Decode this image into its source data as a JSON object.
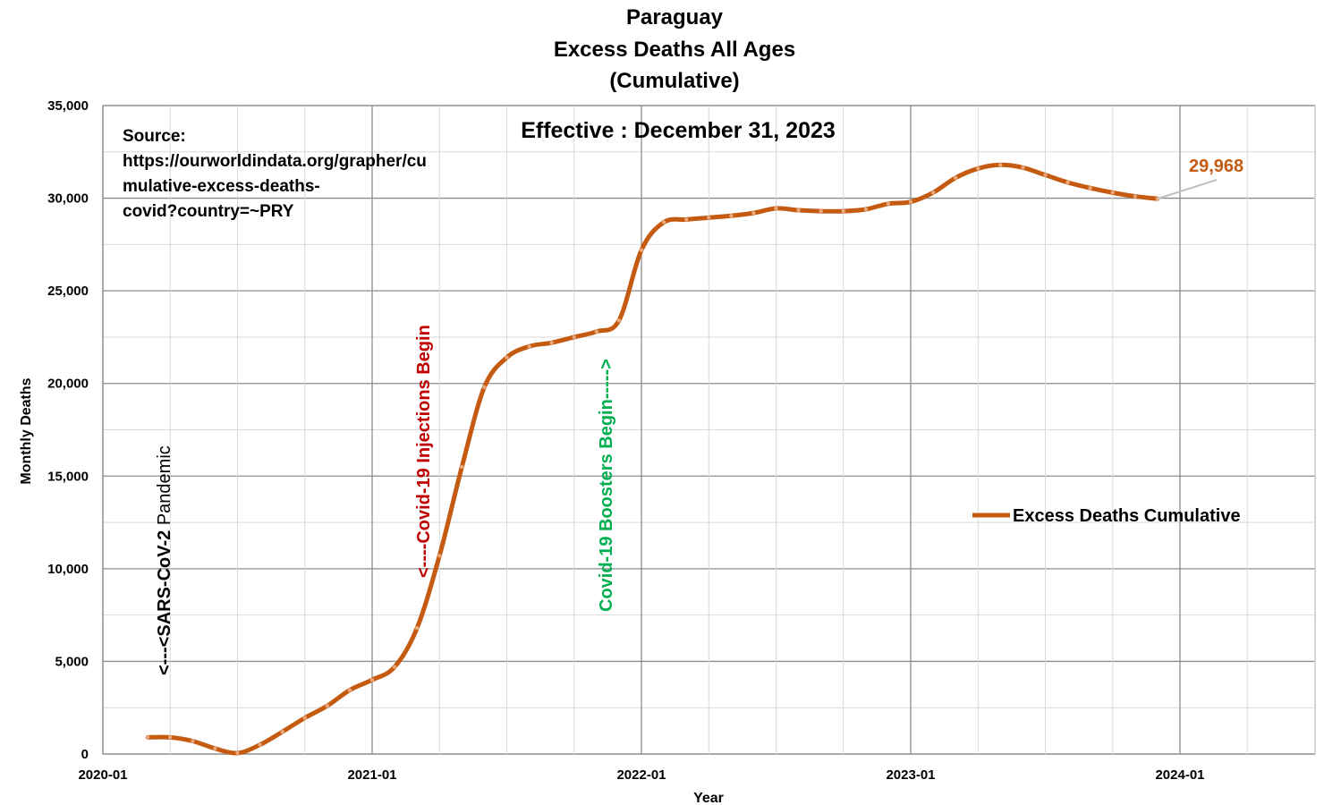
{
  "chart_data": {
    "type": "line",
    "title_lines": [
      "Paraguay",
      "Excess Deaths All Ages",
      "(Cumulative)"
    ],
    "subtitle": "Effective : December 31, 2023",
    "xlabel": "Year",
    "ylabel": "Monthly Deaths",
    "x_ticks": [
      "2020-01",
      "2021-01",
      "2022-01",
      "2023-01",
      "2024-01"
    ],
    "y_ticks": [
      "0",
      "5,000",
      "10,000",
      "15,000",
      "20,000",
      "25,000",
      "30,000",
      "35,000"
    ],
    "ylim": [
      0,
      35000
    ],
    "grid": true,
    "legend_position": "right",
    "series": [
      {
        "name": "Excess Deaths Cumulative",
        "color": "#C55A11",
        "x": [
          "2020-03",
          "2020-04",
          "2020-05",
          "2020-06",
          "2020-07",
          "2020-08",
          "2020-09",
          "2020-10",
          "2020-11",
          "2020-12",
          "2021-01",
          "2021-02",
          "2021-03",
          "2021-04",
          "2021-05",
          "2021-06",
          "2021-07",
          "2021-08",
          "2021-09",
          "2021-10",
          "2021-11",
          "2021-12",
          "2022-01",
          "2022-02",
          "2022-03",
          "2022-04",
          "2022-05",
          "2022-06",
          "2022-07",
          "2022-08",
          "2022-09",
          "2022-10",
          "2022-11",
          "2022-12",
          "2023-01",
          "2023-02",
          "2023-03",
          "2023-04",
          "2023-05",
          "2023-06",
          "2023-07",
          "2023-08",
          "2023-09",
          "2023-10",
          "2023-11",
          "2023-12"
        ],
        "values": [
          900,
          900,
          700,
          300,
          50,
          500,
          1200,
          1950,
          2600,
          3450,
          4000,
          4700,
          6800,
          10700,
          15500,
          19800,
          21400,
          22000,
          22200,
          22500,
          22800,
          23400,
          27200,
          28700,
          28850,
          28950,
          29050,
          29200,
          29450,
          29350,
          29300,
          29300,
          29400,
          29700,
          29800,
          30300,
          31100,
          31600,
          31800,
          31650,
          31250,
          30850,
          30550,
          30300,
          30100,
          29968
        ]
      }
    ],
    "annotations": {
      "source": [
        "Source:",
        "https://ourworldindata.org/grapher/cu",
        "mulative-excess-deaths-",
        "covid?country=~PRY"
      ],
      "sars_arrow": "<---",
      "sars_name": "<SARS-CoV-2",
      "sars_rest": " Pandemic",
      "injections": "<----Covid-19 Injections Begin",
      "boosters": "Covid-19 Boosters Begin----->",
      "last_value": "29,968"
    },
    "colors": {
      "line": "#C55A11",
      "last_value": "#C55A11",
      "injections": "#C00000",
      "boosters": "#00B050",
      "grid": "#bfbfbf"
    }
  }
}
